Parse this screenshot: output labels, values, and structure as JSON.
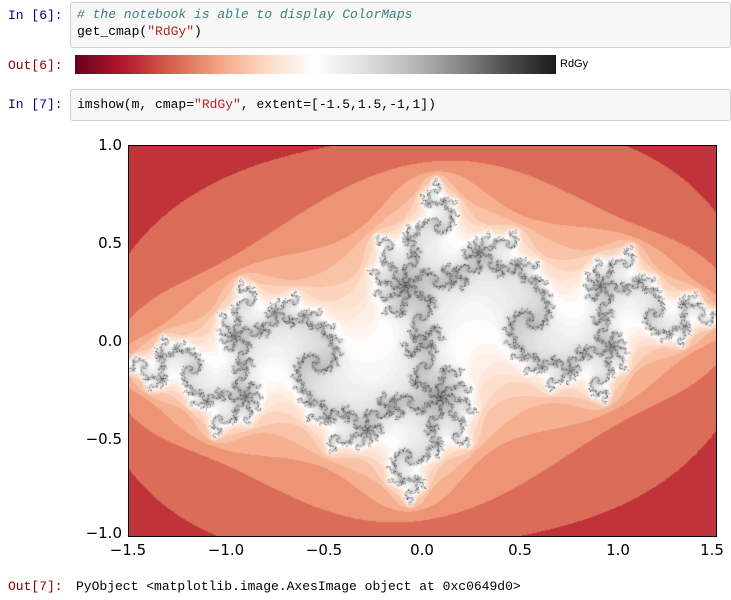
{
  "cells": [
    {
      "in_prompt": "In [6]:",
      "comment": "# the notebook is able to display ColorMaps",
      "code_pre": "get_cmap(",
      "code_str": "\"RdGy\"",
      "code_post": ")",
      "out_prompt": "Out[6]:",
      "colormap_label": "RdGy"
    },
    {
      "in_prompt": "In [7]:",
      "code_pre": "imshow(m, cmap=",
      "code_str": "\"RdGy\"",
      "code_post": ", extent=[-1.5,1.5,-1,1])",
      "out_prompt": "Out[7]:",
      "output_text": "PyObject <matplotlib.image.AxesImage object at 0xc0649d0>"
    }
  ],
  "colors": {
    "in_prompt": "#000080",
    "out_prompt": "#8b0000",
    "comment": "#408080",
    "string": "#ba2121",
    "cmap_start": "#67001f",
    "cmap_mid": "#ffffff",
    "cmap_end": "#1a1a1a"
  },
  "plot": {
    "type": "image",
    "colormap": "RdGy",
    "extent": [
      -1.5,
      1.5,
      -1,
      1
    ],
    "xticks": [
      "−1.5",
      "−1.0",
      "−0.5",
      "0.0",
      "0.5",
      "1.0",
      "1.5"
    ],
    "yticks": [
      "1.0",
      "0.5",
      "0.0",
      "−0.5",
      "−1.0"
    ]
  }
}
